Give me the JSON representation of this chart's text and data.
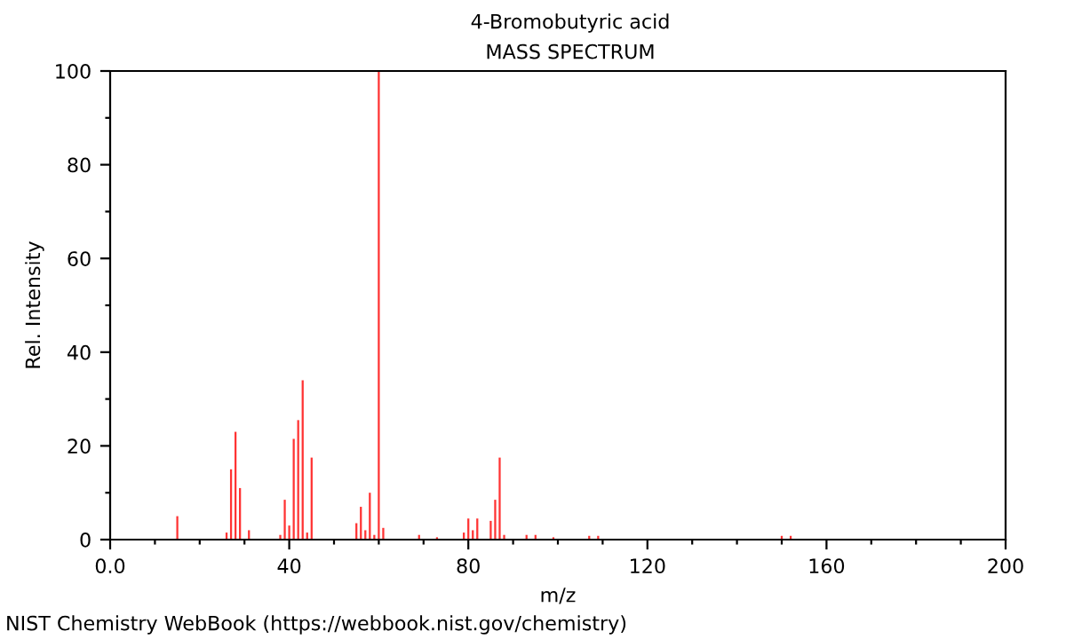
{
  "chart_data": {
    "type": "bar",
    "title": "4-Bromobutyric acid",
    "subtitle": "MASS SPECTRUM",
    "xlabel": "m/z",
    "ylabel": "Rel. Intensity",
    "x": [
      15,
      26,
      27,
      28,
      29,
      31,
      38,
      39,
      40,
      41,
      42,
      43,
      44,
      45,
      55,
      56,
      57,
      58,
      59,
      60,
      61,
      69,
      73,
      79,
      80,
      81,
      82,
      85,
      86,
      87,
      88,
      93,
      95,
      99,
      107,
      109,
      150,
      152
    ],
    "values": [
      5,
      1.5,
      15,
      23,
      11,
      2,
      1,
      8.5,
      3,
      21.5,
      25.5,
      34,
      1.5,
      17.5,
      3.5,
      7,
      2,
      10,
      1,
      100,
      2.5,
      1,
      0.5,
      1.5,
      4.5,
      2,
      4.5,
      4,
      8.5,
      17.5,
      1,
      1,
      1,
      0.5,
      0.8,
      0.8,
      0.8,
      0.8
    ],
    "color": "#ff3333",
    "xlim": [
      0,
      200
    ],
    "ylim": [
      0,
      100
    ],
    "xticks": [
      {
        "value": 0,
        "label": "0.0"
      },
      {
        "value": 10,
        "label": null
      },
      {
        "value": 20,
        "label": null
      },
      {
        "value": 30,
        "label": null
      },
      40,
      {
        "value": 50,
        "label": null
      },
      {
        "value": 60,
        "label": null
      },
      {
        "value": 70,
        "label": null
      },
      80,
      {
        "value": 90,
        "label": null
      },
      {
        "value": 100,
        "label": null
      },
      {
        "value": 110,
        "label": null
      },
      120,
      {
        "value": 130,
        "label": null
      },
      {
        "value": 140,
        "label": null
      },
      {
        "value": 150,
        "label": null
      },
      160,
      {
        "value": 170,
        "label": null
      },
      {
        "value": 180,
        "label": null
      },
      {
        "value": 190,
        "label": null
      },
      200
    ],
    "yticks": [
      0,
      {
        "value": 10,
        "label": null
      },
      20,
      {
        "value": 30,
        "label": null
      },
      40,
      {
        "value": 50,
        "label": null
      },
      60,
      {
        "value": 70,
        "label": null
      },
      80,
      {
        "value": 90,
        "label": null
      },
      100
    ],
    "grid": false,
    "annotations": [
      "NIST Chemistry WebBook (https://webbook.nist.gov/chemistry)"
    ]
  }
}
